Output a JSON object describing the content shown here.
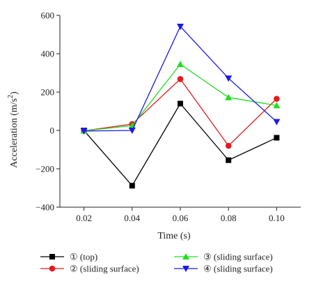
{
  "chart_data": {
    "type": "line",
    "xlabel": "Time (s)",
    "ylabel": "Acceleration (m/s",
    "ylabel_sup": "2",
    "ylabel_end": ")",
    "x": [
      0.02,
      0.04,
      0.06,
      0.08,
      0.1
    ],
    "x_tick_labels": [
      "0.02",
      "0.04",
      "0.06",
      "0.08",
      "0.10"
    ],
    "xlim": [
      0.01,
      0.11
    ],
    "ylim": [
      -400,
      600
    ],
    "y_ticks": [
      -400,
      -200,
      0,
      200,
      400,
      600
    ],
    "y_tick_labels": [
      "−400",
      "−200",
      "0",
      "200",
      "400",
      "600"
    ],
    "grid": false,
    "legend_position": "bottom",
    "series": [
      {
        "name": "① (top)",
        "values": [
          0,
          -288,
          140,
          -155,
          -38
        ],
        "color": "#000000",
        "marker": "square"
      },
      {
        "name": "② (sliding surface)",
        "values": [
          -2,
          33,
          268,
          -80,
          165
        ],
        "color": "#e31a1c",
        "marker": "circle"
      },
      {
        "name": "③ (sliding surface)",
        "values": [
          -2,
          25,
          345,
          172,
          130
        ],
        "color": "#22dd22",
        "marker": "triangle-up"
      },
      {
        "name": "④ (sliding surface)",
        "values": [
          -3,
          0,
          542,
          272,
          45
        ],
        "color": "#1a1aee",
        "marker": "triangle-down"
      }
    ]
  }
}
